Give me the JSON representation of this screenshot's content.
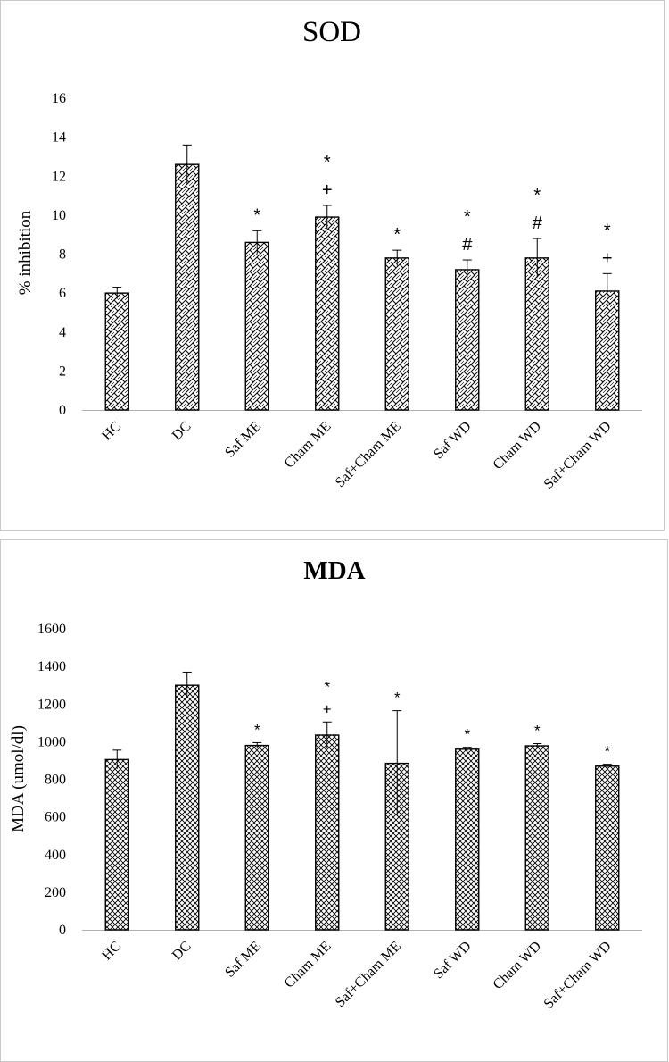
{
  "chart_data": [
    {
      "type": "bar",
      "title": "SOD",
      "ylabel": "% inhibition",
      "xlabel": "",
      "ylim": [
        0,
        16
      ],
      "yticks": [
        "0",
        "2",
        "4",
        "6",
        "8",
        "10",
        "12",
        "14",
        "16"
      ],
      "categories": [
        "HC",
        "DC",
        "Saf ME",
        "Cham ME",
        "Saf+Cham ME",
        "Saf WD",
        "Cham WD",
        "Saf+Cham WD"
      ],
      "values": [
        6.0,
        12.6,
        8.6,
        9.9,
        7.8,
        7.2,
        7.8,
        6.1
      ],
      "errors": [
        0.3,
        1.0,
        0.6,
        0.6,
        0.4,
        0.5,
        1.0,
        0.9
      ],
      "annotations": [
        [],
        [],
        [
          "*"
        ],
        [
          "*",
          "+"
        ],
        [
          "*"
        ],
        [
          "*",
          "#"
        ],
        [
          "*",
          "#"
        ],
        [
          "*",
          "+"
        ]
      ],
      "pattern": "basketweave",
      "grid": false
    },
    {
      "type": "bar",
      "title": "MDA",
      "ylabel": "MDA (umol/dl)",
      "xlabel": "",
      "ylim": [
        0,
        1600
      ],
      "yticks": [
        "0",
        "200",
        "400",
        "600",
        "800",
        "1000",
        "1200",
        "1400",
        "1600"
      ],
      "categories": [
        "HC",
        "DC",
        "Saf ME",
        "Cham ME",
        "Saf+Cham ME",
        "Saf WD",
        "Cham WD",
        "Saf+Cham WD"
      ],
      "values": [
        905,
        1300,
        980,
        1035,
        885,
        960,
        978,
        870
      ],
      "errors": [
        50,
        70,
        15,
        70,
        280,
        10,
        12,
        10
      ],
      "annotations": [
        [],
        [],
        [
          "*"
        ],
        [
          "*",
          "+"
        ],
        [
          "*"
        ],
        [
          "*"
        ],
        [
          "*"
        ],
        [
          "*"
        ]
      ],
      "pattern": "crosshatch",
      "grid": false
    }
  ],
  "colors": {
    "panel_border": "#c8c8c8",
    "axis": "#b0b0b0",
    "bar_stroke": "#000000"
  }
}
